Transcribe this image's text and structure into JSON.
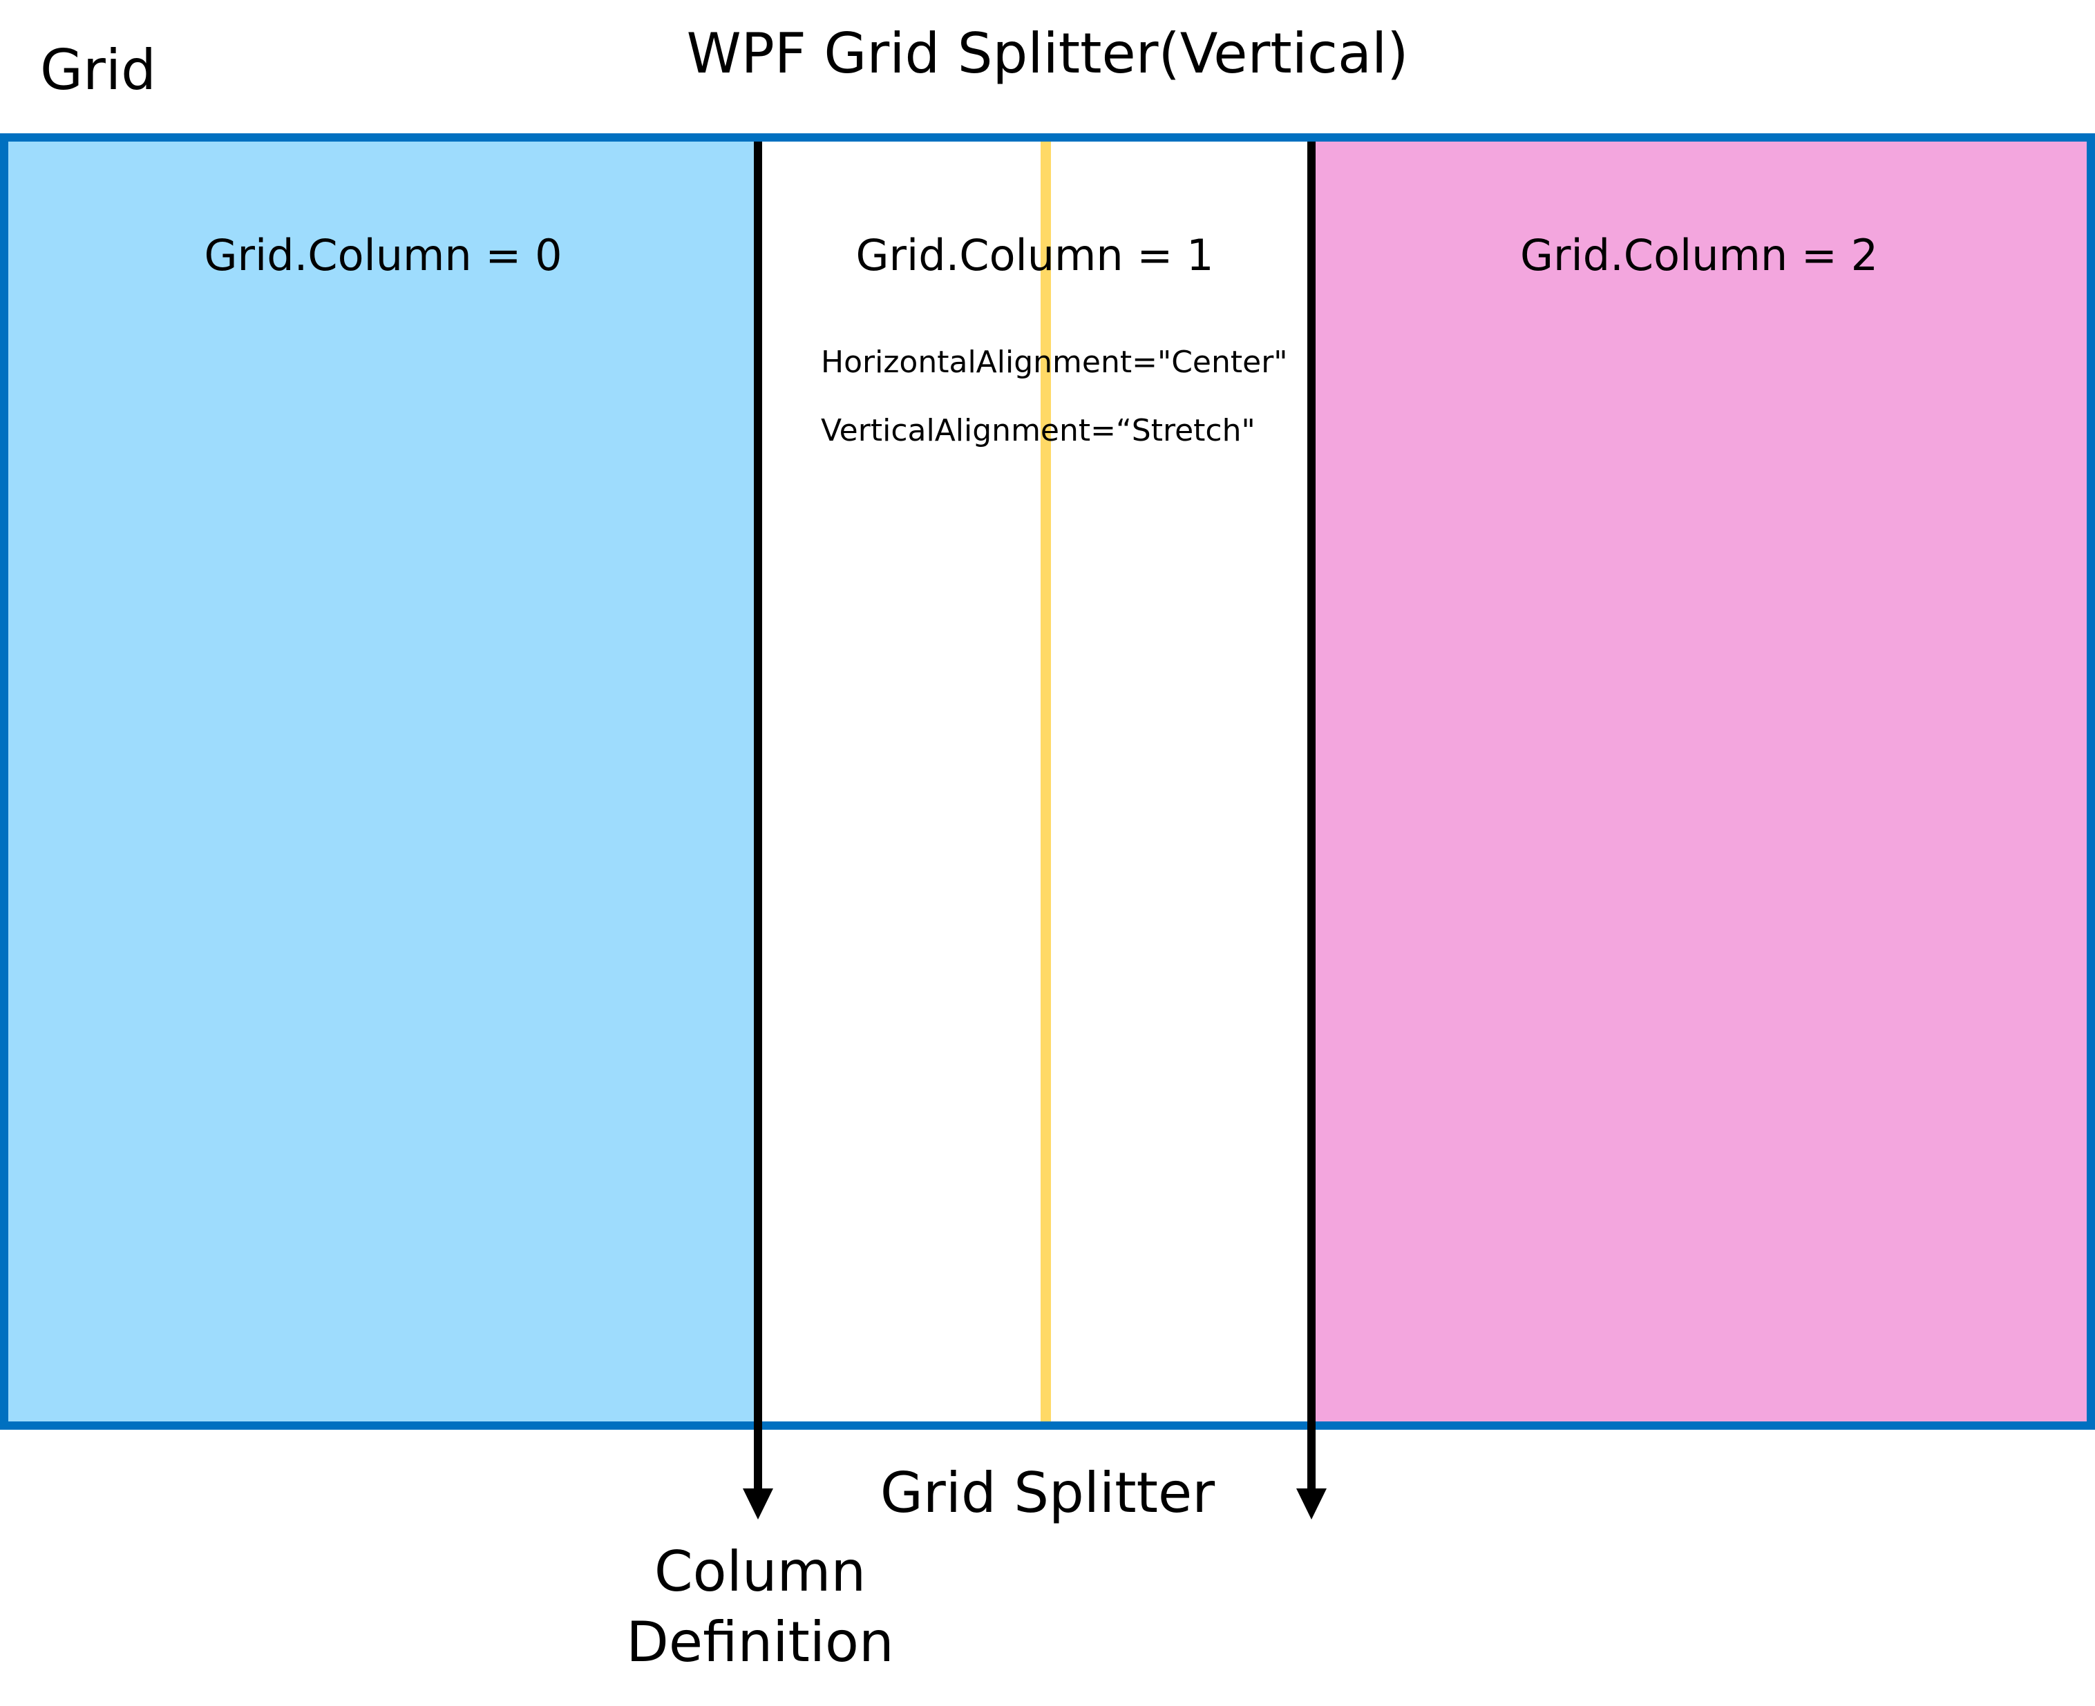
{
  "title": "WPF Grid Splitter(Vertical)",
  "grid_label": "Grid",
  "columns": [
    {
      "label": "Grid.Column = 0",
      "color": "#9EDCFD"
    },
    {
      "label": "Grid.Column = 1",
      "color": "#FFFFFF"
    },
    {
      "label": "Grid.Column = 2",
      "color": "#F3A6DE"
    }
  ],
  "splitter": {
    "color": "#FFD966",
    "horizontal_alignment": "HorizontalAlignment=\"Center\"",
    "vertical_alignment": "VerticalAlignment=“Stretch\""
  },
  "labels": {
    "grid_splitter": "Grid Splitter",
    "column_definition_line1": "Column",
    "column_definition_line2": "Definition"
  },
  "colors": {
    "grid_border": "#0070C0",
    "divider": "#000000"
  }
}
